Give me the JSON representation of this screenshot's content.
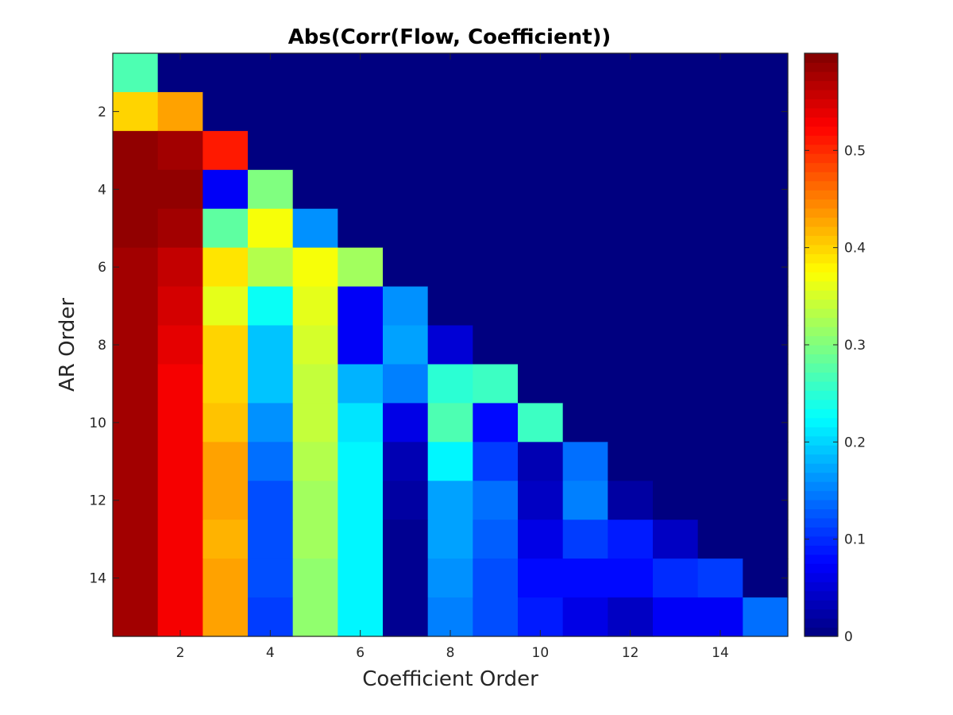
{
  "chart_data": {
    "type": "heatmap",
    "title": "Abs(Corr(Flow, Coefficient))",
    "xlabel": "Coefficient Order",
    "ylabel": "AR Order",
    "x": [
      1,
      2,
      3,
      4,
      5,
      6,
      7,
      8,
      9,
      10,
      11,
      12,
      13,
      14,
      15
    ],
    "y": [
      1,
      2,
      3,
      4,
      5,
      6,
      7,
      8,
      9,
      10,
      11,
      12,
      13,
      14,
      15
    ],
    "xlim": [
      0.5,
      15.5
    ],
    "ylim": [
      0.5,
      15.5
    ],
    "y_direction": "top-down",
    "x_ticks": [
      "2",
      "4",
      "6",
      "8",
      "10",
      "12",
      "14"
    ],
    "y_ticks": [
      "2",
      "4",
      "6",
      "8",
      "10",
      "12",
      "14"
    ],
    "colormap": "jet",
    "clim": [
      0,
      0.6
    ],
    "colorbar_ticks": [
      "0",
      "0.1",
      "0.2",
      "0.3",
      "0.4",
      "0.5"
    ],
    "colorbar_position": "right",
    "grid": false,
    "z": [
      [
        0.27,
        0,
        0,
        0,
        0,
        0,
        0,
        0,
        0,
        0,
        0,
        0,
        0,
        0,
        0
      ],
      [
        0.4,
        0.43,
        0,
        0,
        0,
        0,
        0,
        0,
        0,
        0,
        0,
        0,
        0,
        0,
        0
      ],
      [
        0.59,
        0.58,
        0.51,
        0,
        0,
        0,
        0,
        0,
        0,
        0,
        0,
        0,
        0,
        0,
        0
      ],
      [
        0.59,
        0.59,
        0.07,
        0.3,
        0,
        0,
        0,
        0,
        0,
        0,
        0,
        0,
        0,
        0,
        0
      ],
      [
        0.59,
        0.58,
        0.28,
        0.37,
        0.16,
        0,
        0,
        0,
        0,
        0,
        0,
        0,
        0,
        0,
        0
      ],
      [
        0.58,
        0.56,
        0.39,
        0.33,
        0.37,
        0.32,
        0,
        0,
        0,
        0,
        0,
        0,
        0,
        0,
        0
      ],
      [
        0.58,
        0.55,
        0.36,
        0.23,
        0.36,
        0.07,
        0.16,
        0,
        0,
        0,
        0,
        0,
        0,
        0,
        0
      ],
      [
        0.58,
        0.54,
        0.4,
        0.19,
        0.35,
        0.07,
        0.17,
        0.05,
        0,
        0,
        0,
        0,
        0,
        0,
        0
      ],
      [
        0.58,
        0.53,
        0.4,
        0.19,
        0.34,
        0.18,
        0.15,
        0.25,
        0.26,
        0,
        0,
        0,
        0,
        0,
        0
      ],
      [
        0.58,
        0.53,
        0.41,
        0.16,
        0.34,
        0.21,
        0.06,
        0.27,
        0.08,
        0.26,
        0,
        0,
        0,
        0,
        0
      ],
      [
        0.58,
        0.53,
        0.43,
        0.14,
        0.33,
        0.22,
        0.03,
        0.22,
        0.11,
        0.03,
        0.14,
        0,
        0,
        0,
        0
      ],
      [
        0.58,
        0.53,
        0.43,
        0.12,
        0.32,
        0.22,
        0.02,
        0.17,
        0.14,
        0.04,
        0.15,
        0.02,
        0,
        0,
        0
      ],
      [
        0.58,
        0.53,
        0.42,
        0.12,
        0.32,
        0.22,
        0.01,
        0.17,
        0.13,
        0.06,
        0.11,
        0.09,
        0.04,
        0,
        0
      ],
      [
        0.58,
        0.53,
        0.43,
        0.12,
        0.31,
        0.22,
        0.01,
        0.16,
        0.12,
        0.08,
        0.08,
        0.08,
        0.1,
        0.11,
        0
      ],
      [
        0.58,
        0.53,
        0.43,
        0.11,
        0.31,
        0.22,
        0.01,
        0.15,
        0.12,
        0.09,
        0.06,
        0.04,
        0.07,
        0.07,
        0.14
      ]
    ]
  }
}
